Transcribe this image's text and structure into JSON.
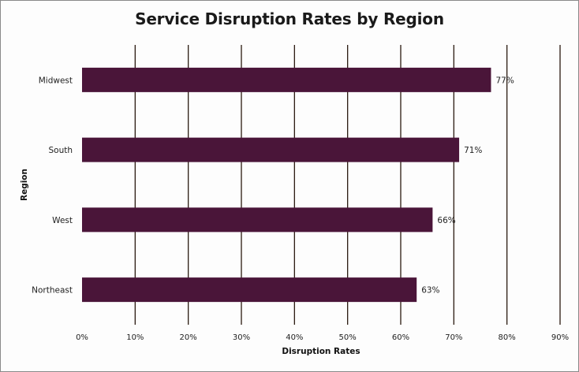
{
  "chart_data": {
    "type": "bar",
    "orientation": "horizontal",
    "title": "Service Disruption Rates by Region",
    "xlabel": "Disruption Rates",
    "ylabel": "Region",
    "categories": [
      "Midwest",
      "South",
      "West",
      "Northeast"
    ],
    "values": [
      77,
      71,
      66,
      63
    ],
    "data_labels": [
      "77%",
      "71%",
      "66%",
      "63%"
    ],
    "xlim": [
      0,
      90
    ],
    "xticks": [
      0,
      10,
      20,
      30,
      40,
      50,
      60,
      70,
      80,
      90
    ],
    "xtick_labels": [
      "0%",
      "10%",
      "20%",
      "30%",
      "40%",
      "50%",
      "60%",
      "70%",
      "80%",
      "90%"
    ],
    "grid": "vertical",
    "legend": "none",
    "bar_color": "#4a1539",
    "grid_color": "#2a1a10"
  }
}
